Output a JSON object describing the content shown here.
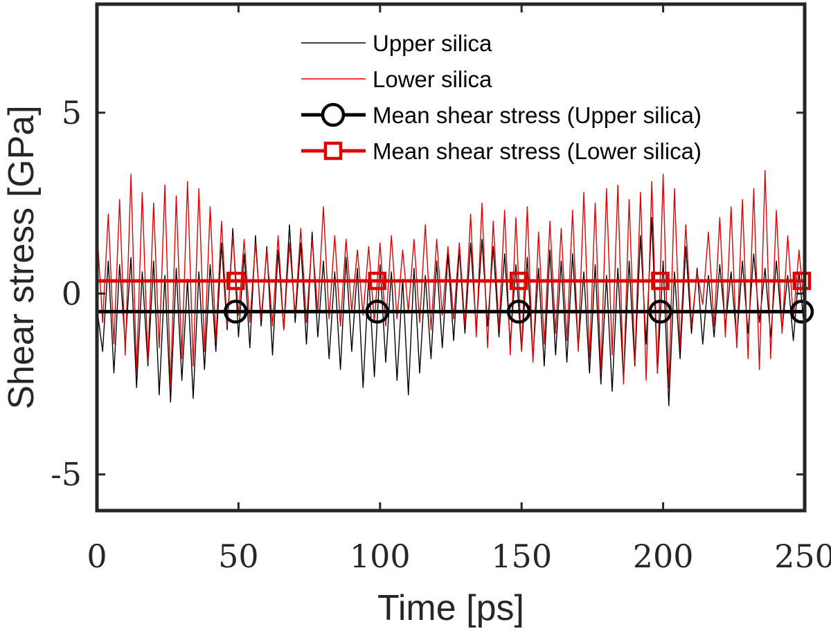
{
  "chart_data": {
    "type": "line",
    "title": "",
    "xlabel": "Time [ps]",
    "ylabel": "Shear stress [GPa]",
    "xlim": [
      0,
      250
    ],
    "ylim": [
      -6,
      8
    ],
    "x_ticks": [
      0,
      50,
      100,
      150,
      200,
      250
    ],
    "y_ticks": [
      -5,
      0,
      5
    ],
    "x_tick_labels": [
      "0",
      "50",
      "100",
      "150",
      "200",
      "250"
    ],
    "y_tick_labels": [
      "-5",
      "0",
      "5"
    ],
    "grid": false,
    "legend_position": "top-right",
    "series": [
      {
        "name": "Upper silica",
        "color": "#000000",
        "style": "thin-line",
        "x": [
          0,
          2,
          4,
          6,
          8,
          10,
          12,
          14,
          16,
          18,
          20,
          22,
          24,
          26,
          28,
          30,
          32,
          34,
          36,
          38,
          40,
          42,
          44,
          46,
          48,
          50,
          52,
          54,
          56,
          58,
          60,
          62,
          64,
          66,
          68,
          70,
          72,
          74,
          76,
          78,
          80,
          82,
          84,
          86,
          88,
          90,
          92,
          94,
          96,
          98,
          100,
          102,
          104,
          106,
          108,
          110,
          112,
          114,
          116,
          118,
          120,
          122,
          124,
          126,
          128,
          130,
          132,
          134,
          136,
          138,
          140,
          142,
          144,
          146,
          148,
          150,
          152,
          154,
          156,
          158,
          160,
          162,
          164,
          166,
          168,
          170,
          172,
          174,
          176,
          178,
          180,
          182,
          184,
          186,
          188,
          190,
          192,
          194,
          196,
          198,
          200,
          202,
          204,
          206,
          208,
          210,
          212,
          214,
          216,
          218,
          220,
          222,
          224,
          226,
          228,
          230,
          232,
          234,
          236,
          238,
          240,
          242,
          244,
          246,
          248,
          250
        ],
        "y": [
          -0.4,
          -1.6,
          0.9,
          -2.2,
          0.8,
          -1.4,
          1.0,
          -2.6,
          0.6,
          -2.0,
          0.9,
          -2.8,
          0.5,
          -3.0,
          0.7,
          -2.4,
          0.4,
          -2.9,
          0.6,
          -2.1,
          0.8,
          -1.6,
          1.4,
          -1.0,
          1.8,
          -1.2,
          1.1,
          -1.5,
          1.6,
          -0.9,
          1.3,
          -1.7,
          1.2,
          -1.0,
          1.9,
          -0.8,
          1.4,
          -1.4,
          1.7,
          -1.2,
          0.9,
          -1.8,
          0.6,
          -2.1,
          1.0,
          -1.6,
          0.7,
          -2.6,
          0.5,
          -2.3,
          0.8,
          -1.9,
          0.6,
          -2.4,
          0.4,
          -2.8,
          0.7,
          -2.2,
          0.5,
          -1.8,
          0.9,
          -1.5,
          1.1,
          -1.3,
          1.2,
          -1.1,
          1.4,
          -1.0,
          1.5,
          -0.9,
          1.3,
          -1.2,
          1.1,
          -1.4,
          0.8,
          -1.6,
          1.0,
          -1.8,
          0.7,
          -2.0,
          1.2,
          -1.7,
          0.9,
          -1.9,
          1.1,
          -1.5,
          0.6,
          -2.2,
          0.8,
          -2.5,
          0.5,
          -2.7,
          0.7,
          -2.4,
          0.9,
          -2.0,
          1.6,
          -1.4,
          2.1,
          -2.2,
          0.9,
          -3.1,
          0.6,
          -1.8,
          1.3,
          -1.1,
          0.7,
          -1.4,
          0.5,
          -1.2,
          0.8,
          -0.9,
          0.6,
          -1.3,
          0.9,
          -1.1,
          1.1,
          -0.8,
          0.7,
          -1.2,
          0.9,
          -1.0,
          0.5,
          -1.3,
          0.6,
          -1.1
        ]
      },
      {
        "name": "Lower silica",
        "color": "#e00000",
        "style": "thin-line",
        "x": [
          0,
          2,
          4,
          6,
          8,
          10,
          12,
          14,
          16,
          18,
          20,
          22,
          24,
          26,
          28,
          30,
          32,
          34,
          36,
          38,
          40,
          42,
          44,
          46,
          48,
          50,
          52,
          54,
          56,
          58,
          60,
          62,
          64,
          66,
          68,
          70,
          72,
          74,
          76,
          78,
          80,
          82,
          84,
          86,
          88,
          90,
          92,
          94,
          96,
          98,
          100,
          102,
          104,
          106,
          108,
          110,
          112,
          114,
          116,
          118,
          120,
          122,
          124,
          126,
          128,
          130,
          132,
          134,
          136,
          138,
          140,
          142,
          144,
          146,
          148,
          150,
          152,
          154,
          156,
          158,
          160,
          162,
          164,
          166,
          168,
          170,
          172,
          174,
          176,
          178,
          180,
          182,
          184,
          186,
          188,
          190,
          192,
          194,
          196,
          198,
          200,
          202,
          204,
          206,
          208,
          210,
          212,
          214,
          216,
          218,
          220,
          222,
          224,
          226,
          228,
          230,
          232,
          234,
          236,
          238,
          240,
          242,
          244,
          246,
          248,
          250
        ],
        "y": [
          1.8,
          -0.8,
          2.2,
          -1.4,
          2.6,
          -1.7,
          3.3,
          -2.2,
          2.8,
          -1.9,
          2.5,
          -1.5,
          3.0,
          -2.6,
          2.7,
          -1.8,
          3.1,
          -2.0,
          2.9,
          -1.6,
          2.4,
          -1.3,
          2.0,
          -0.9,
          1.6,
          -0.6,
          1.5,
          -0.8,
          1.4,
          -0.7,
          1.2,
          -0.9,
          1.6,
          -1.0,
          1.4,
          -0.6,
          1.8,
          -0.8,
          1.5,
          -0.5,
          2.4,
          -0.7,
          1.6,
          -0.9,
          1.5,
          -0.5,
          1.2,
          -0.6,
          1.3,
          -0.8,
          1.4,
          -0.9,
          1.6,
          -0.7,
          1.2,
          -0.5,
          1.5,
          -0.8,
          1.9,
          -1.0,
          1.5,
          -0.6,
          1.3,
          -0.7,
          1.4,
          -0.9,
          2.2,
          -1.2,
          2.5,
          -1.5,
          2.0,
          -1.0,
          2.3,
          -1.7,
          2.1,
          -1.6,
          2.4,
          -1.9,
          1.7,
          -1.4,
          2.0,
          -1.1,
          1.8,
          -1.3,
          2.3,
          -1.6,
          2.8,
          -1.8,
          2.5,
          -2.2,
          2.9,
          -1.7,
          3.0,
          -2.5,
          2.6,
          -1.9,
          2.8,
          -2.4,
          3.1,
          -2.2,
          3.3,
          -2.6,
          2.9,
          -1.5,
          1.9,
          -0.9,
          0.6,
          -0.3,
          1.7,
          -0.9,
          2.1,
          -1.2,
          2.4,
          -1.5,
          2.6,
          -1.8,
          2.9,
          -2.1,
          3.4,
          -1.8,
          2.3,
          -1.1,
          1.6,
          -0.7,
          1.2,
          -0.5
        ]
      },
      {
        "name": "Mean shear stress (Upper silica)",
        "color": "#000000",
        "style": "thick-line-circle-markers",
        "x": [
          0,
          250
        ],
        "y": [
          -0.5,
          -0.5
        ],
        "marker_x": [
          49,
          99,
          149,
          199,
          249
        ],
        "marker_y": [
          -0.5,
          -0.5,
          -0.5,
          -0.5,
          -0.5
        ]
      },
      {
        "name": "Mean shear stress (Lower silica)",
        "color": "#e00000",
        "style": "thick-line-square-markers",
        "x": [
          0,
          250
        ],
        "y": [
          0.35,
          0.35
        ],
        "marker_x": [
          49,
          99,
          149,
          199,
          249
        ],
        "marker_y": [
          0.35,
          0.35,
          0.35,
          0.35,
          0.35
        ]
      }
    ]
  }
}
